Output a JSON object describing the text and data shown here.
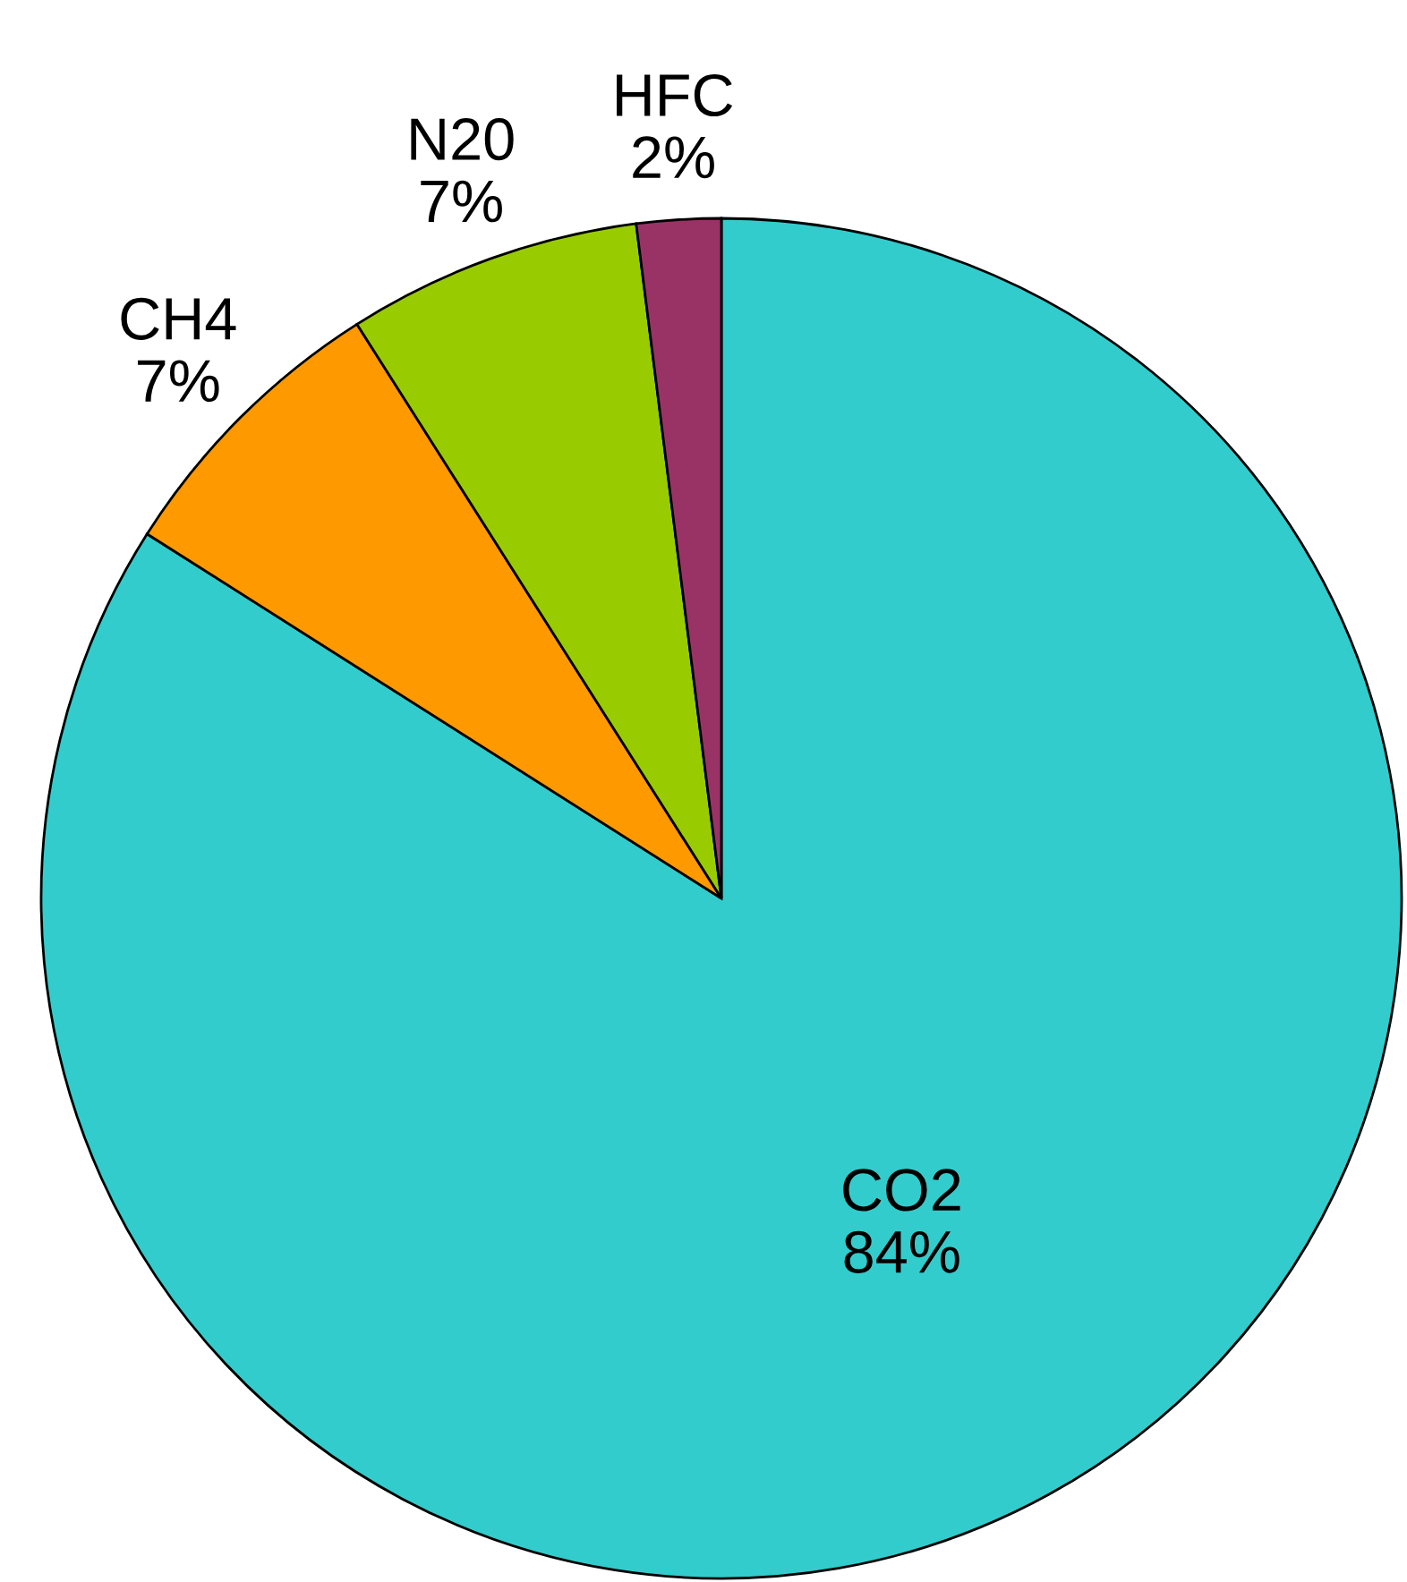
{
  "chart_data": {
    "type": "pie",
    "categories": [
      "CO2",
      "CH4",
      "N20",
      "HFC"
    ],
    "values": [
      84,
      7,
      7,
      2
    ],
    "value_labels": [
      "84%",
      "7%",
      "7%",
      "2%"
    ],
    "colors": [
      "#33cccc",
      "#ff9900",
      "#99cc00",
      "#993366"
    ]
  }
}
